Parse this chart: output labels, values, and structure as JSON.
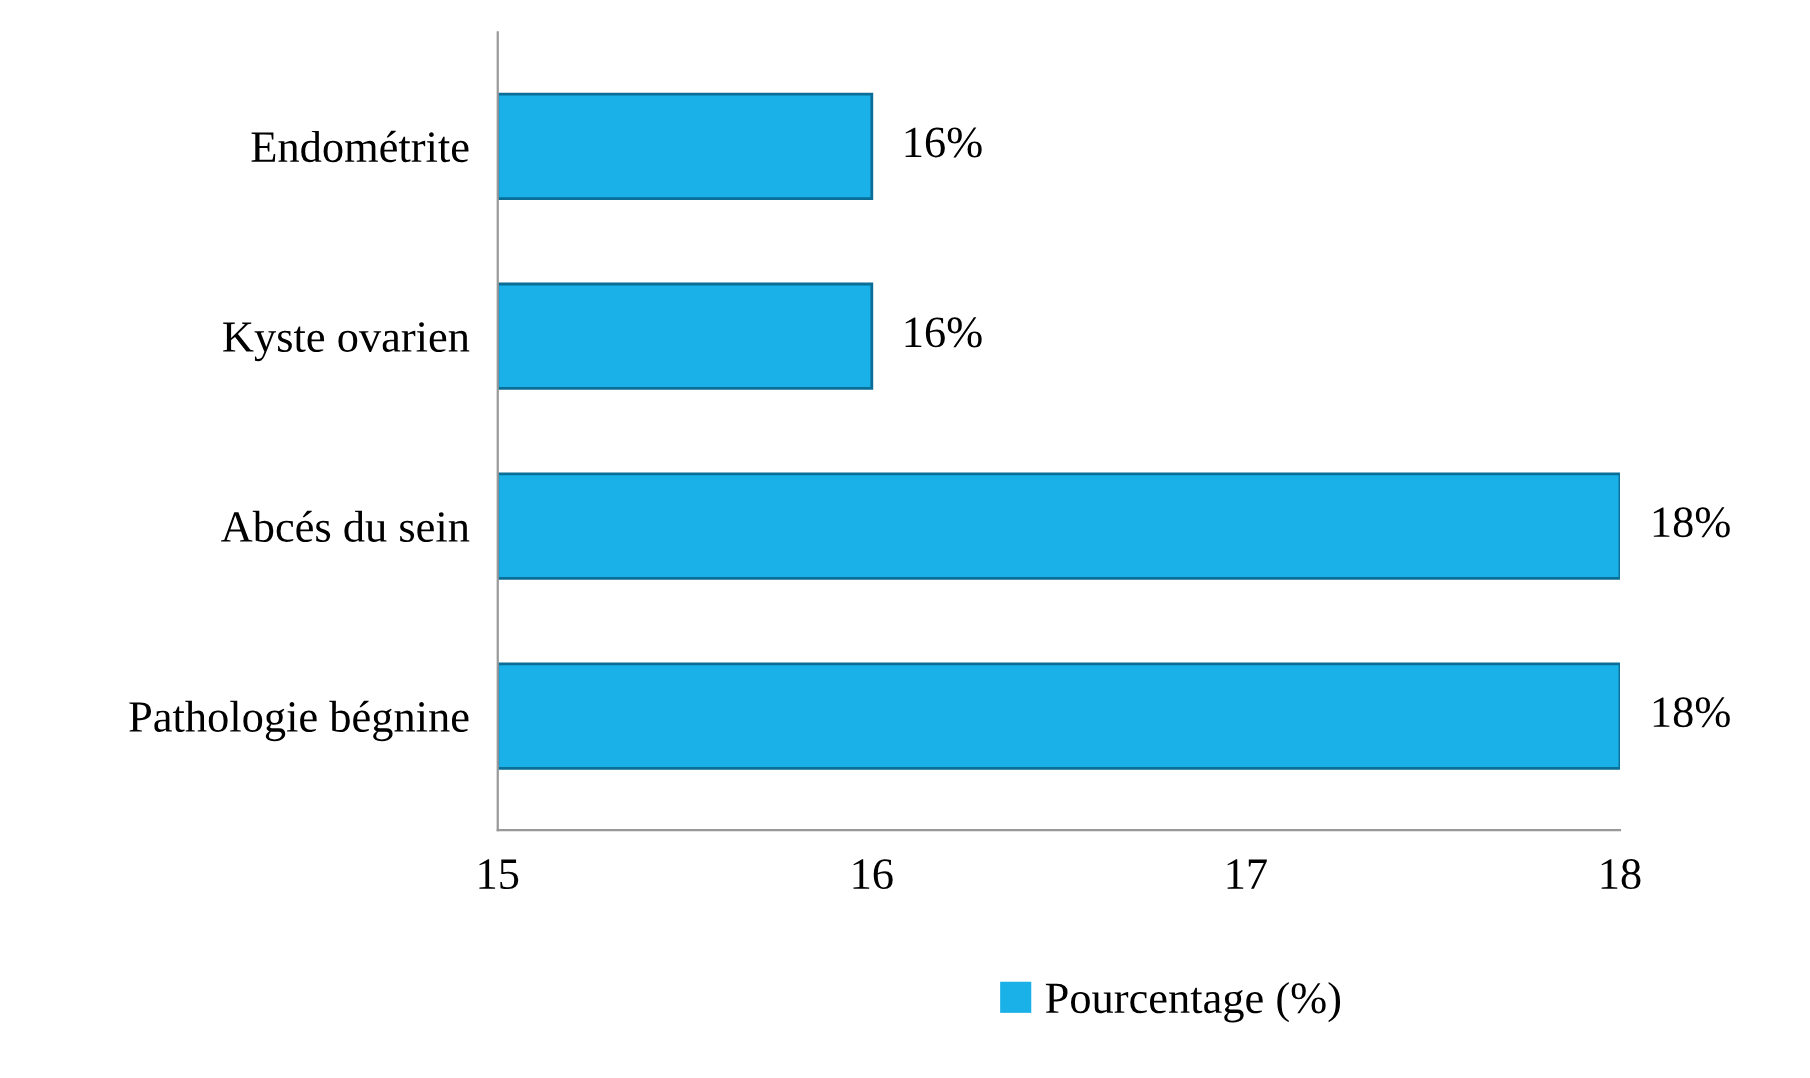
{
  "chart_data": {
    "type": "bar",
    "orientation": "horizontal",
    "categories": [
      "Endométrite",
      "Kyste ovarien",
      "Abcés du sein",
      "Pathologie bégnine"
    ],
    "series": [
      {
        "name": "Pourcentage (%)",
        "color": "#1ab0e8",
        "values": [
          16,
          16,
          18,
          18
        ],
        "value_labels": [
          "16%",
          "16%",
          "18%",
          "18%"
        ]
      }
    ],
    "xlim": [
      15,
      18
    ],
    "xticks": [
      15,
      16,
      17,
      18
    ],
    "grid": false,
    "legend": "bottom"
  }
}
